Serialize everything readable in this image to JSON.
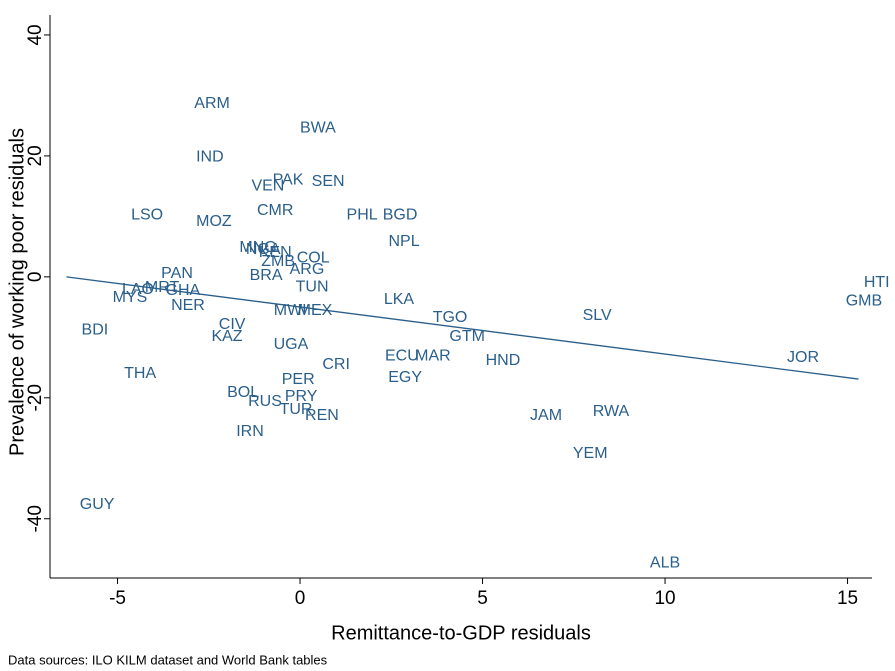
{
  "chart_data": {
    "type": "scatter",
    "x_label": "Remittance-to-GDP residuals",
    "y_label": "Prevalence of working poor residuals",
    "note": "Data sources: ILO KILM dataset and World Bank tables",
    "color": "#2a5f8c",
    "labels": [
      "ARM",
      "BWA",
      "IND",
      "VEN",
      "PAK",
      "SEN",
      "LSO",
      "MOZ",
      "CMR",
      "PHL",
      "BGD",
      "NPL",
      "MNG",
      "NGA",
      "KEN",
      "COL",
      "ZMB",
      "ARG",
      "BRA",
      "PAN",
      "LAO",
      "MRT",
      "GHA",
      "MYS",
      "NER",
      "TUN",
      "LKA",
      "MWI",
      "MEX",
      "TGO",
      "SLV",
      "HTI",
      "GMB",
      "BDI",
      "CIV",
      "KAZ",
      "GTM",
      "UGA",
      "ECU",
      "MAR",
      "HND",
      "CRI",
      "JOR",
      "THA",
      "EGY",
      "PER",
      "BOL",
      "PRY",
      "RUS",
      "TUR",
      "REN",
      "JAM",
      "RWA",
      "IRN",
      "YEM",
      "GUY",
      "ALB"
    ],
    "x": [
      -2.41,
      0.49,
      -2.47,
      -0.88,
      -0.33,
      0.77,
      -4.19,
      -2.36,
      -0.68,
      1.7,
      2.74,
      2.85,
      -1.15,
      -1.01,
      -0.68,
      0.36,
      -0.6,
      0.19,
      -0.93,
      -3.37,
      -4.44,
      -3.78,
      -3.21,
      -4.66,
      -3.07,
      0.33,
      2.71,
      -0.27,
      0.41,
      4.11,
      8.14,
      15.8,
      15.45,
      -5.62,
      -1.86,
      -2.0,
      4.58,
      -0.25,
      2.79,
      3.64,
      5.56,
      0.99,
      13.78,
      -4.38,
      2.88,
      -0.05,
      -1.56,
      0.03,
      -0.96,
      -0.11,
      0.6,
      6.74,
      8.52,
      -1.37,
      7.95,
      -5.56,
      10.0
    ],
    "values": [
      28.6,
      24.6,
      19.8,
      15.0,
      16.0,
      15.7,
      10.2,
      9.1,
      10.9,
      10.2,
      10.2,
      5.8,
      4.8,
      4.5,
      4.0,
      3.1,
      2.5,
      1.2,
      0.2,
      0.5,
      -2.1,
      -1.8,
      -2.3,
      -3.5,
      -4.8,
      -1.7,
      -3.8,
      -5.6,
      -5.6,
      -6.8,
      -6.4,
      -1.0,
      -4.0,
      -8.8,
      -7.9,
      -9.9,
      -9.9,
      -11.2,
      -13.1,
      -13.1,
      -13.9,
      -14.5,
      -13.4,
      -16.0,
      -16.7,
      -17.0,
      -19.2,
      -19.8,
      -20.7,
      -22.0,
      -23.0,
      -23.0,
      -22.3,
      -25.6,
      -29.3,
      -37.7,
      -47.4
    ],
    "fit": {
      "x": [
        -6.4,
        15.3
      ],
      "values": [
        0,
        -16.9
      ]
    },
    "xlim": [
      -6.85,
      15.67
    ],
    "ylim": [
      -49.8,
      43.3
    ],
    "xticks": [
      -5,
      0,
      5,
      10,
      15
    ],
    "yticks": [
      -40,
      -20,
      0,
      20,
      40
    ]
  }
}
